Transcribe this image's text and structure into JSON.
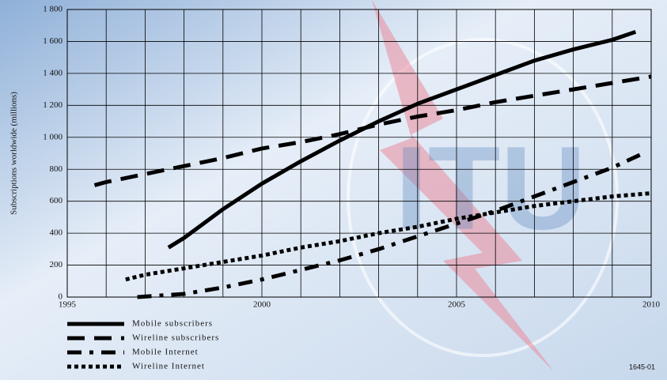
{
  "chart_data": {
    "type": "line",
    "background_logo": "ITU",
    "ylabel": "Subscriptions worldwide (millions)",
    "xlim": [
      1995,
      2010
    ],
    "xticks": [
      1995,
      2000,
      2005,
      2010
    ],
    "x_grid": [
      1995,
      1996,
      1997,
      1998,
      1999,
      2000,
      2001,
      2002,
      2003,
      2004,
      2005,
      2006,
      2007,
      2008,
      2009,
      2010
    ],
    "ylim": [
      0,
      1800
    ],
    "yticks": [
      0,
      200,
      400,
      600,
      800,
      {
        "value": 1000,
        "label": "1 000"
      },
      {
        "value": 1200,
        "label": "1 200"
      },
      {
        "value": 1400,
        "label": "1 400"
      },
      {
        "value": 1600,
        "label": "1 600"
      },
      {
        "value": 1800,
        "label": "1 800"
      }
    ],
    "grid": true,
    "series": [
      {
        "name": "Mobile subscribers",
        "color": "#000000",
        "dash": "solid",
        "x": [
          1997.6,
          1998,
          1999,
          2000,
          2001,
          2002,
          2003,
          2004,
          2005,
          2006,
          2007,
          2008,
          2009,
          2009.6
        ],
        "values": [
          310,
          370,
          550,
          710,
          850,
          980,
          1100,
          1210,
          1300,
          1390,
          1480,
          1550,
          1610,
          1660
        ]
      },
      {
        "name": "Wireline subscribers",
        "color": "#000000",
        "dash": "dash",
        "x": [
          1995.7,
          1996,
          1997,
          1998,
          1999,
          2000,
          2001,
          2002,
          2003,
          2004,
          2005,
          2006,
          2007,
          2008,
          2009,
          2010
        ],
        "values": [
          700,
          720,
          770,
          820,
          870,
          930,
          970,
          1020,
          1080,
          1130,
          1170,
          1220,
          1260,
          1300,
          1340,
          1380
        ]
      },
      {
        "name": "Mobile Internet",
        "color": "#000000",
        "dash": "dashdot",
        "x": [
          1996.8,
          1998,
          1999,
          2000,
          2001,
          2002,
          2003,
          2004,
          2005,
          2006,
          2007,
          2008,
          2009,
          2009.8
        ],
        "values": [
          0,
          20,
          60,
          110,
          170,
          230,
          300,
          380,
          460,
          540,
          630,
          720,
          810,
          900
        ]
      },
      {
        "name": "Wireline Internet",
        "color": "#000000",
        "dash": "dot",
        "x": [
          1996.5,
          1997,
          1998,
          1999,
          2000,
          2001,
          2002,
          2003,
          2004,
          2005,
          2006,
          2007,
          2008,
          2009,
          2010
        ],
        "values": [
          110,
          140,
          180,
          220,
          260,
          310,
          350,
          400,
          440,
          490,
          530,
          570,
          600,
          630,
          650
        ]
      }
    ],
    "figure_code": "1645-01"
  }
}
